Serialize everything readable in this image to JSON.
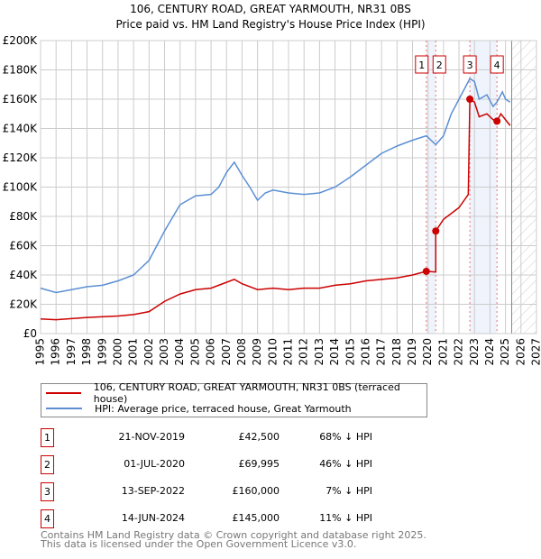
{
  "chart_data": {
    "type": "line",
    "title": "106, CENTURY ROAD, GREAT YARMOUTH, NR31 0BS",
    "subtitle": "Price paid vs. HM Land Registry's House Price Index (HPI)",
    "xlim": [
      1995,
      2027
    ],
    "ylim": [
      0,
      200000
    ],
    "x_ticks": [
      "1995",
      "1996",
      "1997",
      "1998",
      "1999",
      "2000",
      "2001",
      "2002",
      "2003",
      "2004",
      "2005",
      "2006",
      "2007",
      "2008",
      "2009",
      "2010",
      "2011",
      "2012",
      "2013",
      "2014",
      "2015",
      "2016",
      "2017",
      "2018",
      "2019",
      "2020",
      "2021",
      "2022",
      "2023",
      "2024",
      "2025",
      "2026",
      "2027"
    ],
    "y_ticks": [
      {
        "v": 0,
        "l": "£0"
      },
      {
        "v": 20000,
        "l": "£20K"
      },
      {
        "v": 40000,
        "l": "£40K"
      },
      {
        "v": 60000,
        "l": "£60K"
      },
      {
        "v": 80000,
        "l": "£80K"
      },
      {
        "v": 100000,
        "l": "£100K"
      },
      {
        "v": 120000,
        "l": "£120K"
      },
      {
        "v": 140000,
        "l": "£140K"
      },
      {
        "v": 160000,
        "l": "£160K"
      },
      {
        "v": 180000,
        "l": "£180K"
      },
      {
        "v": 200000,
        "l": "£200K"
      }
    ],
    "grid": true,
    "series": [
      {
        "name": "106, CENTURY ROAD, GREAT YARMOUTH, NR31 0BS (terraced house)",
        "color": "#cc0000",
        "x": [
          1995,
          1996,
          1998,
          2000,
          2001,
          2002,
          2003,
          2004,
          2005,
          2006,
          2007,
          2007.5,
          2008,
          2009,
          2010,
          2011,
          2012,
          2013,
          2014,
          2015,
          2016,
          2017,
          2018,
          2019,
          2019.89,
          2020.5,
          2020.5,
          2021,
          2022,
          2022.6,
          2022.7,
          2023,
          2023.3,
          2023.8,
          2024.2,
          2024.45,
          2024.7,
          2025,
          2025.3
        ],
        "y": [
          10000,
          9500,
          11000,
          12000,
          13000,
          15000,
          22000,
          27000,
          30000,
          31000,
          35000,
          37000,
          34000,
          30000,
          31000,
          30000,
          31000,
          31000,
          33000,
          34000,
          36000,
          37000,
          38000,
          40000,
          42500,
          42000,
          69995,
          78000,
          86000,
          95000,
          160000,
          158000,
          148000,
          150000,
          146000,
          145000,
          150000,
          146000,
          142000
        ]
      },
      {
        "name": "HPI: Average price, terraced house, Great Yarmouth",
        "color": "#5b8fd4",
        "x": [
          1995,
          1996,
          1997,
          1998,
          1999,
          2000,
          2001,
          2002,
          2003,
          2004,
          2005,
          2006,
          2006.5,
          2007,
          2007.5,
          2008,
          2008.5,
          2009,
          2009.5,
          2010,
          2011,
          2012,
          2013,
          2014,
          2015,
          2016,
          2017,
          2018,
          2019,
          2019.89,
          2020.5,
          2021,
          2021.5,
          2022,
          2022.5,
          2022.7,
          2023,
          2023.3,
          2023.8,
          2024.2,
          2024.45,
          2024.8,
          2025,
          2025.3
        ],
        "y": [
          31000,
          28000,
          30000,
          32000,
          33000,
          36000,
          40000,
          50000,
          70000,
          88000,
          94000,
          95000,
          100000,
          110000,
          117000,
          108000,
          100000,
          91000,
          96000,
          98000,
          96000,
          95000,
          96000,
          100000,
          107000,
          115000,
          123000,
          128000,
          132000,
          135000,
          129000,
          135000,
          150000,
          160000,
          170000,
          174000,
          172000,
          160000,
          163000,
          155000,
          158000,
          165000,
          160000,
          158000
        ]
      }
    ],
    "sales": [
      {
        "n": "1",
        "x": 2019.89,
        "y": 42500,
        "date": "21-NOV-2019",
        "price": "£42,500",
        "diff": "68% ↓ HPI"
      },
      {
        "n": "2",
        "x": 2020.5,
        "y": 69995,
        "date": "01-JUL-2020",
        "price": "£69,995",
        "diff": "46% ↓ HPI"
      },
      {
        "n": "3",
        "x": 2022.7,
        "y": 160000,
        "date": "13-SEP-2022",
        "price": "£160,000",
        "diff": "7% ↓ HPI"
      },
      {
        "n": "4",
        "x": 2024.45,
        "y": 145000,
        "date": "14-JUN-2024",
        "price": "£145,000",
        "diff": "11% ↓ HPI"
      }
    ],
    "shaded_ranges": [
      [
        2019.89,
        2020.5
      ],
      [
        2022.7,
        2024.45
      ]
    ],
    "forecast_start": 2025.4,
    "legend_position": "below"
  },
  "footer": {
    "line1": "Contains HM Land Registry data © Crown copyright and database right 2025.",
    "line2": "This data is licensed under the Open Government Licence v3.0."
  }
}
